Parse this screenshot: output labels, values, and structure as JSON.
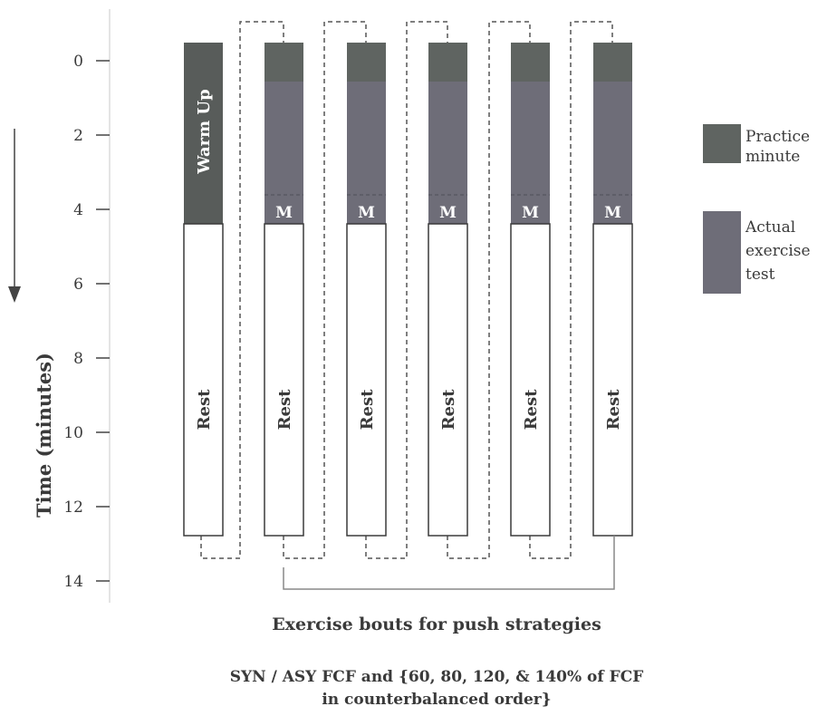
{
  "y_axis": {
    "label": "Time (minutes)",
    "ticks": [
      "0",
      "2",
      "4",
      "6",
      "8",
      "10",
      "12",
      "14"
    ],
    "tick_values": [
      0,
      2,
      4,
      6,
      8,
      10,
      12,
      14
    ]
  },
  "bars": [
    {
      "id": "warmup",
      "top_label": "Warm Up",
      "rest_label": "Rest",
      "has_marker": false
    },
    {
      "id": "bout-1",
      "rest_label": "Rest",
      "marker": "M",
      "has_marker": true
    },
    {
      "id": "bout-2",
      "rest_label": "Rest",
      "marker": "M",
      "has_marker": true
    },
    {
      "id": "bout-3",
      "rest_label": "Rest",
      "marker": "M",
      "has_marker": true
    },
    {
      "id": "bout-4",
      "rest_label": "Rest",
      "marker": "M",
      "has_marker": true
    },
    {
      "id": "bout-5",
      "rest_label": "Rest",
      "marker": "M",
      "has_marker": true
    }
  ],
  "legend": {
    "items": [
      {
        "label_lines": [
          "Practice",
          "minute"
        ],
        "color": "#5f6461"
      },
      {
        "label_lines": [
          "Actual",
          "exercise",
          "test"
        ],
        "color": "#6e6d78"
      }
    ]
  },
  "caption": {
    "title": "Exercise bouts for push strategies",
    "line1": "SYN / ASY FCF and {60, 80, 120, & 140% of FCF",
    "line2": "in counterbalanced order}"
  },
  "colors": {
    "warmup": "#585c5a",
    "practice": "#5f6461",
    "test": "#6e6d78",
    "outline": "#3a3a3a",
    "connector": "#555555"
  }
}
